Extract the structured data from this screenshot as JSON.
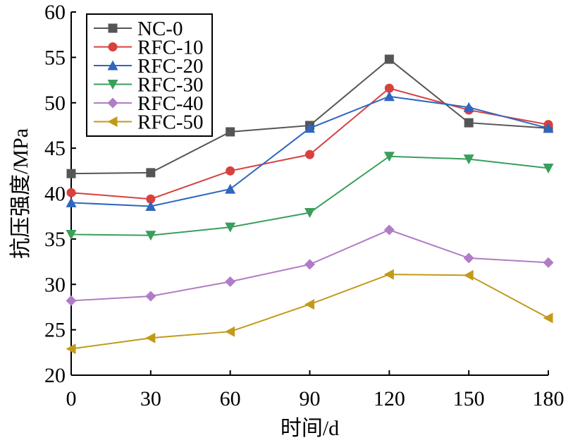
{
  "chart_data": {
    "type": "line",
    "xlabel": "时间/d",
    "ylabel": "抗压强度/MPa",
    "xlim": [
      0,
      180
    ],
    "ylim": [
      20,
      60
    ],
    "xticks": [
      "0",
      "30",
      "60",
      "90",
      "120",
      "150",
      "180"
    ],
    "yticks": [
      "20",
      "25",
      "30",
      "35",
      "40",
      "45",
      "50",
      "55",
      "60"
    ],
    "x": [
      0,
      30,
      60,
      90,
      120,
      150,
      180
    ],
    "grid": false,
    "legend": "top-left",
    "series": [
      {
        "name": "NC-0",
        "marker": "square",
        "color": "#555555",
        "values": [
          42.2,
          42.3,
          46.8,
          47.5,
          54.8,
          47.8,
          47.2
        ]
      },
      {
        "name": "RFC-10",
        "marker": "circle",
        "color": "#d94040",
        "values": [
          40.1,
          39.4,
          42.5,
          44.3,
          51.6,
          49.2,
          47.6
        ]
      },
      {
        "name": "RFC-20",
        "marker": "triangle-up",
        "color": "#2e66c0",
        "values": [
          39.0,
          38.6,
          40.5,
          47.2,
          50.7,
          49.5,
          47.2
        ]
      },
      {
        "name": "RFC-30",
        "marker": "triangle-down",
        "color": "#3a9e5c",
        "values": [
          35.5,
          35.4,
          36.3,
          37.9,
          44.1,
          43.8,
          42.8
        ]
      },
      {
        "name": "RFC-40",
        "marker": "diamond",
        "color": "#b07cc6",
        "values": [
          28.2,
          28.7,
          30.3,
          32.2,
          36.0,
          32.9,
          32.4
        ]
      },
      {
        "name": "RFC-50",
        "marker": "triangle-left",
        "color": "#c29a1a",
        "values": [
          22.9,
          24.1,
          24.8,
          27.8,
          31.1,
          31.0,
          26.3
        ]
      }
    ]
  }
}
